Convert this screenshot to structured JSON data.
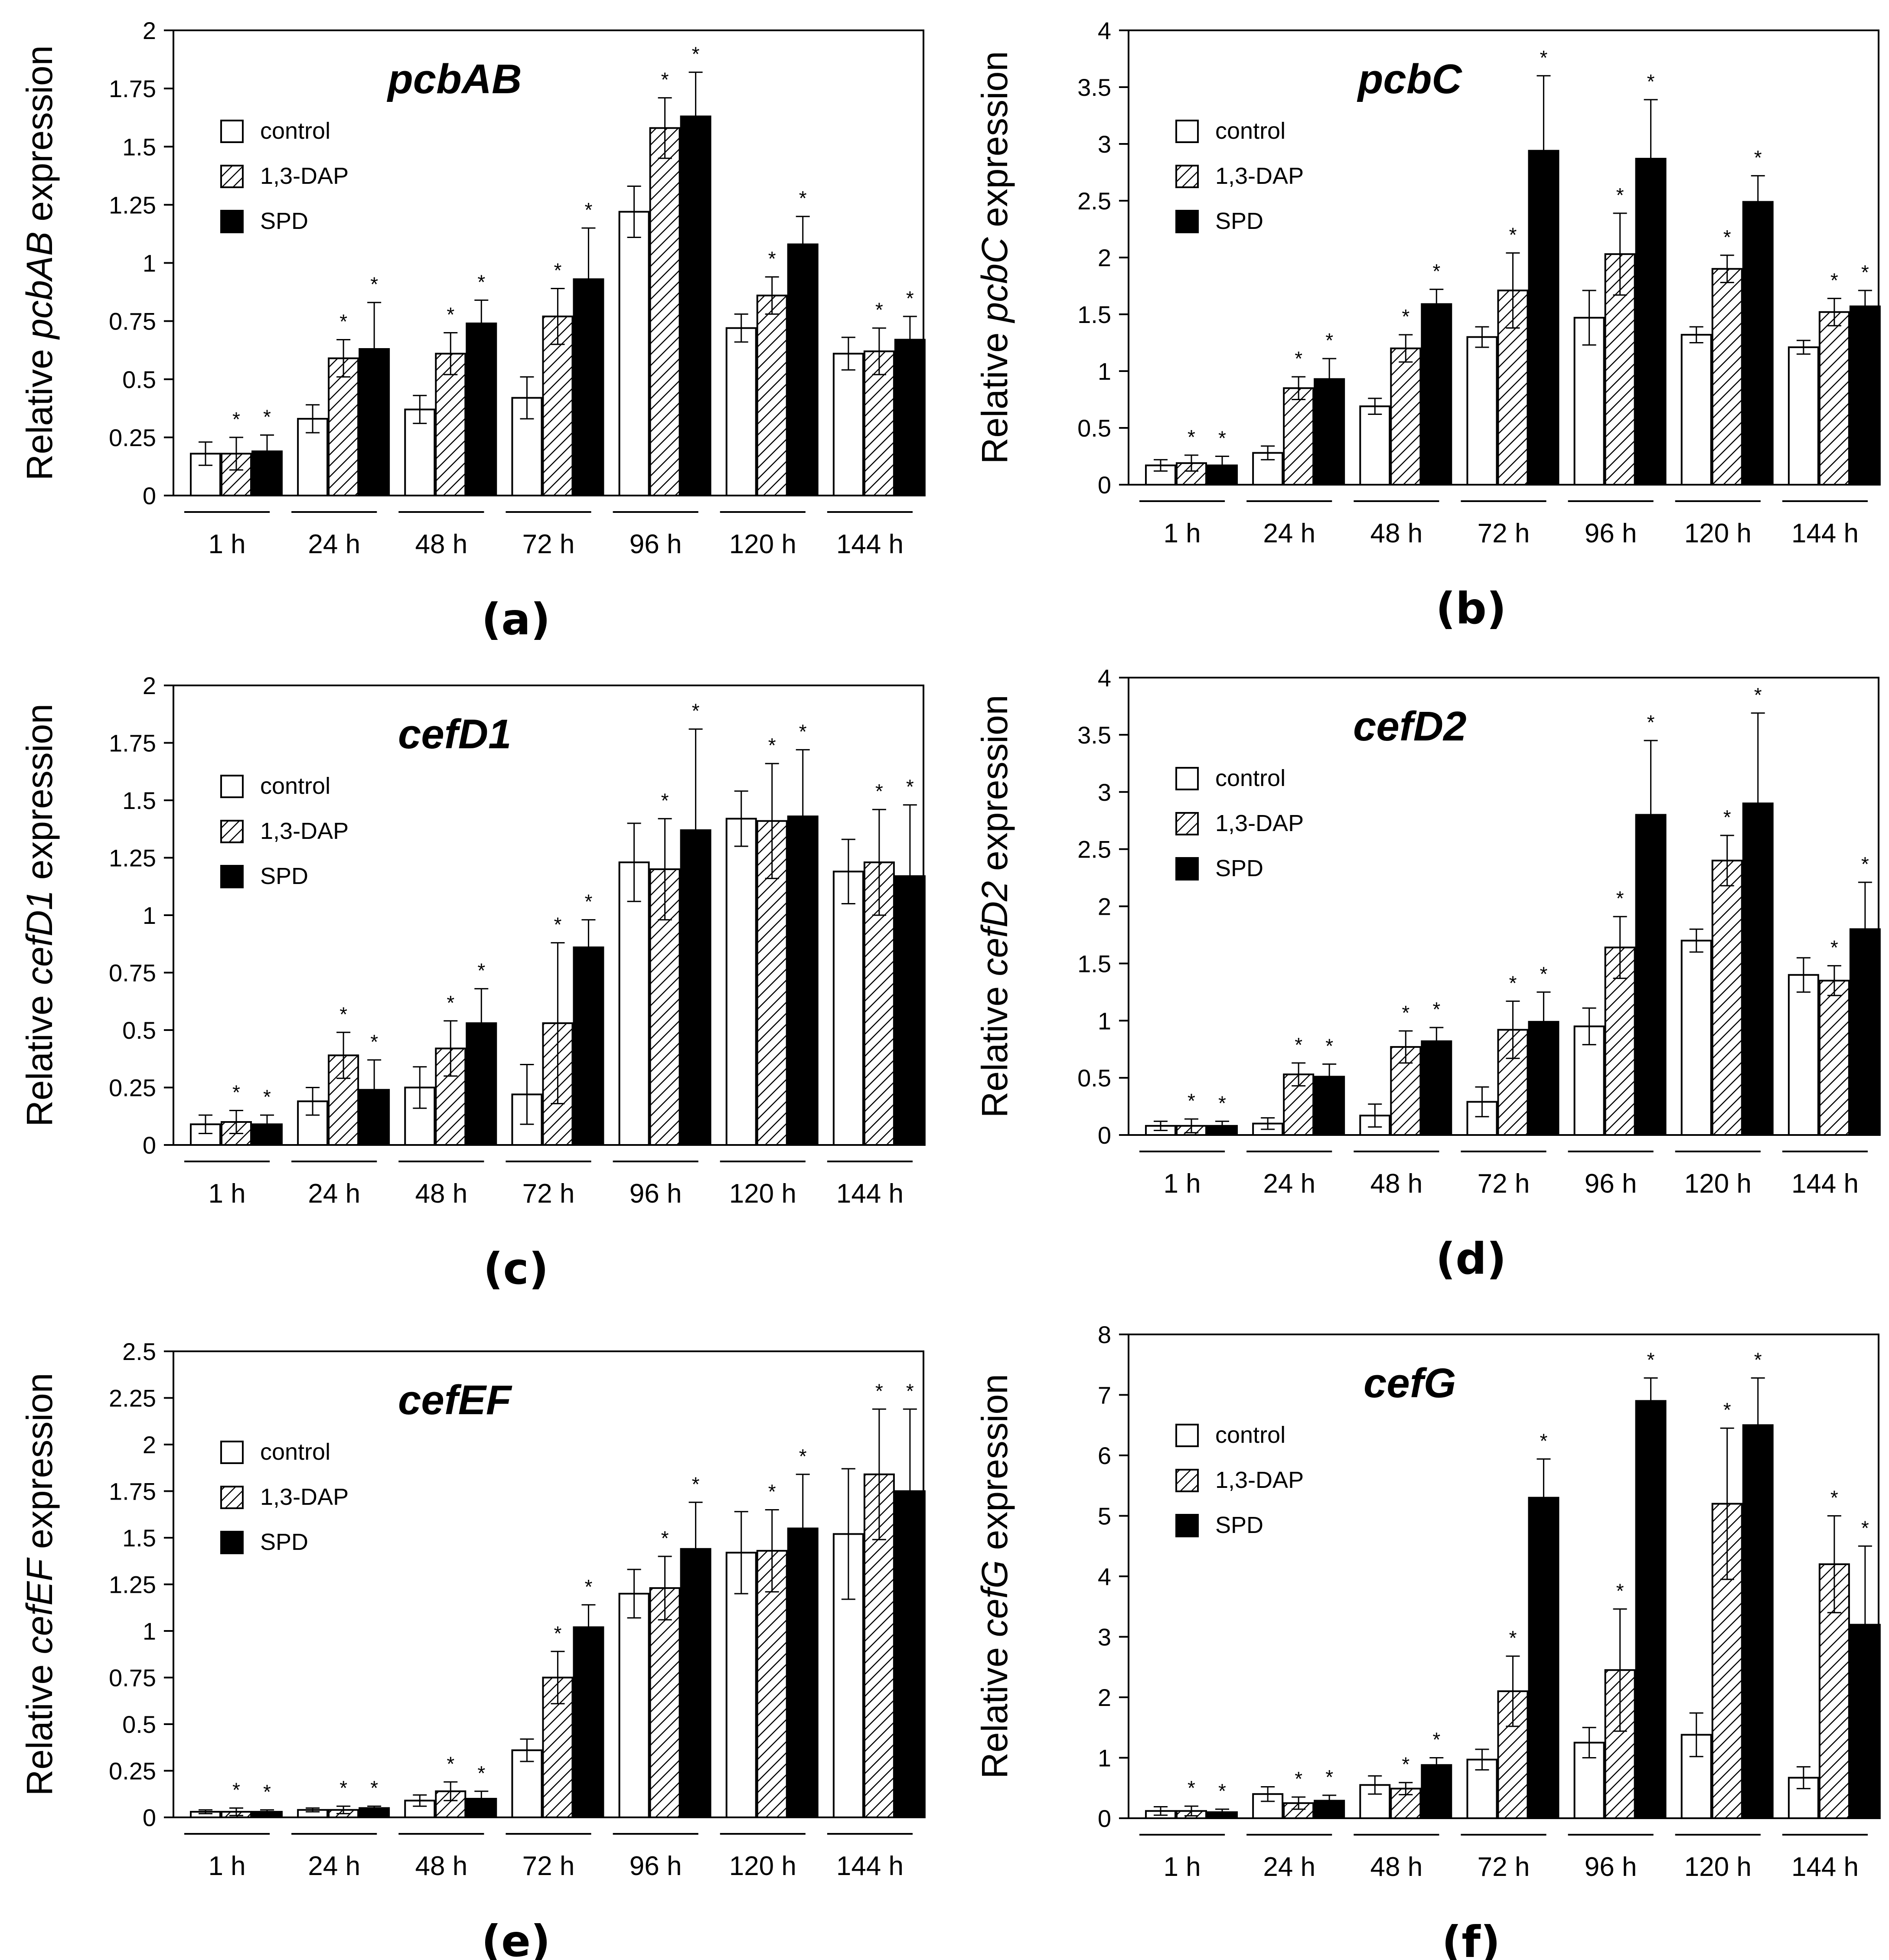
{
  "chart_data": [
    {
      "type": "bar",
      "title": "pcbAB",
      "panel_label": "(a)",
      "ylabel_prefix": "Relative ",
      "ylabel_gene": "pcbAB",
      "ylabel_suffix": " expression",
      "ylim": [
        0,
        2
      ],
      "yticks": [
        "0",
        "0.25",
        "0.5",
        "0.75",
        "1",
        "1.25",
        "1.5",
        "1.75",
        "2"
      ],
      "categories": [
        "1 h",
        "24 h",
        "48 h",
        "72 h",
        "96 h",
        "120 h",
        "144 h"
      ],
      "legend": [
        "control",
        "1,3-DAP",
        "SPD"
      ],
      "series": [
        {
          "name": "control",
          "values": [
            0.18,
            0.33,
            0.37,
            0.42,
            1.22,
            0.72,
            0.61
          ],
          "errors": [
            0.05,
            0.06,
            0.06,
            0.09,
            0.11,
            0.06,
            0.07
          ],
          "sig": [
            false,
            false,
            false,
            false,
            false,
            false,
            false
          ]
        },
        {
          "name": "1,3-DAP",
          "values": [
            0.18,
            0.59,
            0.61,
            0.77,
            1.58,
            0.86,
            0.62
          ],
          "errors": [
            0.07,
            0.08,
            0.09,
            0.12,
            0.13,
            0.08,
            0.1
          ],
          "sig": [
            true,
            true,
            true,
            true,
            true,
            true,
            true
          ]
        },
        {
          "name": "SPD",
          "values": [
            0.19,
            0.63,
            0.74,
            0.93,
            1.63,
            1.08,
            0.67
          ],
          "errors": [
            0.07,
            0.2,
            0.1,
            0.22,
            0.19,
            0.12,
            0.1
          ],
          "sig": [
            true,
            true,
            true,
            true,
            true,
            true,
            true
          ]
        }
      ]
    },
    {
      "type": "bar",
      "title": "pcbC",
      "panel_label": "(b)",
      "ylabel_prefix": "Relative ",
      "ylabel_gene": "pcbC",
      "ylabel_suffix": " expression",
      "ylim": [
        0,
        4
      ],
      "yticks": [
        "0",
        "0.5",
        "1",
        "1.5",
        "2",
        "2.5",
        "3",
        "3.5",
        "4"
      ],
      "categories": [
        "1 h",
        "24 h",
        "48 h",
        "72 h",
        "96 h",
        "120 h",
        "144 h"
      ],
      "legend": [
        "control",
        "1,3-DAP",
        "SPD"
      ],
      "series": [
        {
          "name": "control",
          "values": [
            0.17,
            0.28,
            0.69,
            1.3,
            1.47,
            1.32,
            1.21
          ],
          "errors": [
            0.05,
            0.06,
            0.07,
            0.09,
            0.24,
            0.07,
            0.06
          ],
          "sig": [
            false,
            false,
            false,
            false,
            false,
            false,
            false
          ]
        },
        {
          "name": "1,3-DAP",
          "values": [
            0.19,
            0.85,
            1.2,
            1.71,
            2.03,
            1.9,
            1.52
          ],
          "errors": [
            0.07,
            0.1,
            0.12,
            0.33,
            0.36,
            0.12,
            0.12
          ],
          "sig": [
            true,
            true,
            true,
            true,
            true,
            true,
            true
          ]
        },
        {
          "name": "SPD",
          "values": [
            0.17,
            0.93,
            1.59,
            2.94,
            2.87,
            2.49,
            1.57
          ],
          "errors": [
            0.08,
            0.18,
            0.13,
            0.66,
            0.52,
            0.23,
            0.14
          ],
          "sig": [
            true,
            true,
            true,
            true,
            true,
            true,
            true
          ]
        }
      ]
    },
    {
      "type": "bar",
      "title": "cefD1",
      "panel_label": "(c)",
      "ylabel_prefix": "Relative ",
      "ylabel_gene": "cefD1",
      "ylabel_suffix": " expression",
      "ylim": [
        0,
        2
      ],
      "yticks": [
        "0",
        "0.25",
        "0.5",
        "0.75",
        "1",
        "1.25",
        "1.5",
        "1.75",
        "2"
      ],
      "categories": [
        "1 h",
        "24 h",
        "48 h",
        "72 h",
        "96 h",
        "120 h",
        "144 h"
      ],
      "legend": [
        "control",
        "1,3-DAP",
        "SPD"
      ],
      "series": [
        {
          "name": "control",
          "values": [
            0.09,
            0.19,
            0.25,
            0.22,
            1.23,
            1.42,
            1.19
          ],
          "errors": [
            0.04,
            0.06,
            0.09,
            0.13,
            0.17,
            0.12,
            0.14
          ],
          "sig": [
            false,
            false,
            false,
            false,
            false,
            false,
            false
          ]
        },
        {
          "name": "1,3-DAP",
          "values": [
            0.1,
            0.39,
            0.42,
            0.53,
            1.2,
            1.41,
            1.23
          ],
          "errors": [
            0.05,
            0.1,
            0.12,
            0.35,
            0.22,
            0.25,
            0.23
          ],
          "sig": [
            true,
            true,
            true,
            true,
            true,
            true,
            true
          ]
        },
        {
          "name": "SPD",
          "values": [
            0.09,
            0.24,
            0.53,
            0.86,
            1.37,
            1.43,
            1.17
          ],
          "errors": [
            0.04,
            0.13,
            0.15,
            0.12,
            0.44,
            0.29,
            0.31
          ],
          "sig": [
            true,
            true,
            true,
            true,
            true,
            true,
            true
          ]
        }
      ]
    },
    {
      "type": "bar",
      "title": "cefD2",
      "panel_label": "(d)",
      "ylabel_prefix": "Relative ",
      "ylabel_gene": "cefD2",
      "ylabel_suffix": " expression",
      "ylim": [
        0,
        4
      ],
      "yticks": [
        "0",
        "0.5",
        "1",
        "1.5",
        "2",
        "2.5",
        "3",
        "3.5",
        "4"
      ],
      "categories": [
        "1 h",
        "24 h",
        "48 h",
        "72 h",
        "96 h",
        "120 h",
        "144 h"
      ],
      "legend": [
        "control",
        "1,3-DAP",
        "SPD"
      ],
      "series": [
        {
          "name": "control",
          "values": [
            0.08,
            0.1,
            0.17,
            0.29,
            0.95,
            1.7,
            1.4
          ],
          "errors": [
            0.04,
            0.05,
            0.1,
            0.13,
            0.16,
            0.1,
            0.15
          ],
          "sig": [
            false,
            false,
            false,
            false,
            false,
            false,
            false
          ]
        },
        {
          "name": "1,3-DAP",
          "values": [
            0.08,
            0.53,
            0.77,
            0.92,
            1.64,
            2.4,
            1.35
          ],
          "errors": [
            0.06,
            0.1,
            0.14,
            0.25,
            0.27,
            0.22,
            0.13
          ],
          "sig": [
            true,
            true,
            true,
            true,
            true,
            true,
            true
          ]
        },
        {
          "name": "SPD",
          "values": [
            0.08,
            0.51,
            0.82,
            0.99,
            2.8,
            2.9,
            1.8
          ],
          "errors": [
            0.04,
            0.11,
            0.12,
            0.26,
            0.65,
            0.79,
            0.41
          ],
          "sig": [
            true,
            true,
            true,
            true,
            true,
            true,
            true
          ]
        }
      ]
    },
    {
      "type": "bar",
      "title": "cefEF",
      "panel_label": "(e)",
      "ylabel_prefix": "Relative ",
      "ylabel_gene": "cefEF",
      "ylabel_suffix": " expression",
      "ylim": [
        0,
        2.5
      ],
      "yticks": [
        "0",
        "0.25",
        "0.5",
        "0.75",
        "1",
        "1.25",
        "1.5",
        "1.75",
        "2",
        "2.25",
        "2.5"
      ],
      "categories": [
        "1 h",
        "24 h",
        "48 h",
        "72 h",
        "96 h",
        "120 h",
        "144 h"
      ],
      "legend": [
        "control",
        "1,3-DAP",
        "SPD"
      ],
      "series": [
        {
          "name": "control",
          "values": [
            0.03,
            0.04,
            0.09,
            0.36,
            1.2,
            1.42,
            1.52
          ],
          "errors": [
            0.01,
            0.01,
            0.03,
            0.06,
            0.13,
            0.22,
            0.35
          ],
          "sig": [
            false,
            false,
            false,
            false,
            false,
            false,
            false
          ]
        },
        {
          "name": "1,3-DAP",
          "values": [
            0.03,
            0.04,
            0.14,
            0.75,
            1.23,
            1.43,
            1.84
          ],
          "errors": [
            0.02,
            0.02,
            0.05,
            0.14,
            0.17,
            0.22,
            0.35
          ],
          "sig": [
            true,
            true,
            true,
            true,
            true,
            true,
            true
          ]
        },
        {
          "name": "SPD",
          "values": [
            0.03,
            0.05,
            0.1,
            1.02,
            1.44,
            1.55,
            1.75
          ],
          "errors": [
            0.01,
            0.01,
            0.04,
            0.12,
            0.25,
            0.29,
            0.44
          ],
          "sig": [
            true,
            true,
            true,
            true,
            true,
            true,
            true
          ]
        }
      ]
    },
    {
      "type": "bar",
      "title": "cefG",
      "panel_label": "(f)",
      "ylabel_prefix": "Relative ",
      "ylabel_gene": "cefG",
      "ylabel_suffix": " expression",
      "ylim": [
        0,
        8
      ],
      "yticks": [
        "0",
        "1",
        "2",
        "3",
        "4",
        "5",
        "6",
        "7",
        "8"
      ],
      "categories": [
        "1 h",
        "24 h",
        "48 h",
        "72 h",
        "96 h",
        "120 h",
        "144 h"
      ],
      "legend": [
        "control",
        "1,3-DAP",
        "SPD"
      ],
      "series": [
        {
          "name": "control",
          "values": [
            0.12,
            0.4,
            0.55,
            0.97,
            1.25,
            1.38,
            0.67
          ],
          "errors": [
            0.07,
            0.12,
            0.15,
            0.17,
            0.25,
            0.36,
            0.18
          ],
          "sig": [
            false,
            false,
            false,
            false,
            false,
            false,
            false
          ]
        },
        {
          "name": "1,3-DAP",
          "values": [
            0.12,
            0.25,
            0.49,
            2.1,
            2.45,
            5.2,
            4.2
          ],
          "errors": [
            0.08,
            0.1,
            0.1,
            0.58,
            1.01,
            1.25,
            0.8
          ],
          "sig": [
            true,
            true,
            true,
            true,
            true,
            true,
            true
          ]
        },
        {
          "name": "SPD",
          "values": [
            0.1,
            0.29,
            0.88,
            5.3,
            6.9,
            6.5,
            3.2
          ],
          "errors": [
            0.05,
            0.09,
            0.12,
            0.64,
            0.38,
            0.78,
            1.3
          ],
          "sig": [
            true,
            true,
            true,
            true,
            true,
            true,
            true
          ]
        }
      ]
    }
  ]
}
